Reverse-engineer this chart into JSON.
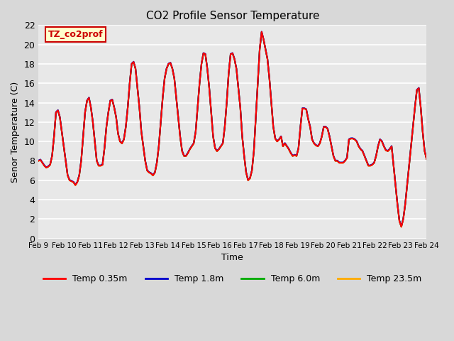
{
  "title": "CO2 Profile Sensor Temperature",
  "xlabel": "Time",
  "ylabel": "Senor Temperature (C)",
  "annotation_text": "TZ_co2prof",
  "annotation_box_color": "#ffffcc",
  "annotation_text_color": "#cc0000",
  "annotation_border_color": "#cc0000",
  "ylim": [
    0,
    22
  ],
  "yticks": [
    0,
    2,
    4,
    6,
    8,
    10,
    12,
    14,
    16,
    18,
    20,
    22
  ],
  "xtick_labels": [
    "Feb 9",
    "Feb 10",
    "Feb 11",
    "Feb 12",
    "Feb 13",
    "Feb 14",
    "Feb 15",
    "Feb 16",
    "Feb 17",
    "Feb 18",
    "Feb 19",
    "Feb 20",
    "Feb 21",
    "Feb 22",
    "Feb 23",
    "Feb 24"
  ],
  "background_color": "#d8d8d8",
  "plot_bg_color": "#e8e8e8",
  "grid_color": "#ffffff",
  "line_colors": {
    "0.35m": "#ff0000",
    "1.8m": "#0000cc",
    "6.0m": "#00aa00",
    "23.5m": "#ffaa00"
  },
  "legend_labels": [
    "Temp 0.35m",
    "Temp 1.8m",
    "Temp 6.0m",
    "Temp 23.5m"
  ],
  "temp_values": [
    8.0,
    8.1,
    7.8,
    7.5,
    7.3,
    7.4,
    7.6,
    8.5,
    10.5,
    13.0,
    13.2,
    12.5,
    11.0,
    9.5,
    8.0,
    6.5,
    6.0,
    5.9,
    5.8,
    5.5,
    5.8,
    6.5,
    8.0,
    10.5,
    13.0,
    14.2,
    14.5,
    13.5,
    12.0,
    10.0,
    8.0,
    7.5,
    7.5,
    7.6,
    9.3,
    11.5,
    13.0,
    14.2,
    14.3,
    13.5,
    12.5,
    10.8,
    10.0,
    9.8,
    10.2,
    11.5,
    13.5,
    16.0,
    18.0,
    18.2,
    17.5,
    15.5,
    13.5,
    11.0,
    9.5,
    8.0,
    7.0,
    6.8,
    6.7,
    6.5,
    6.8,
    7.8,
    9.5,
    12.0,
    14.5,
    16.5,
    17.5,
    18.0,
    18.1,
    17.5,
    16.5,
    14.5,
    12.5,
    10.5,
    9.0,
    8.5,
    8.5,
    8.8,
    9.2,
    9.5,
    9.8,
    11.0,
    13.5,
    16.0,
    18.0,
    19.1,
    19.0,
    17.5,
    15.5,
    13.0,
    10.5,
    9.3,
    9.0,
    9.2,
    9.5,
    9.8,
    11.5,
    14.0,
    17.0,
    19.0,
    19.1,
    18.5,
    17.5,
    15.5,
    13.5,
    10.5,
    8.5,
    6.8,
    6.0,
    6.2,
    7.0,
    9.0,
    12.5,
    16.0,
    19.5,
    21.3,
    20.5,
    19.5,
    18.5,
    16.5,
    14.0,
    11.5,
    10.3,
    10.0,
    10.2,
    10.5,
    9.5,
    9.8,
    9.5,
    9.2,
    8.8,
    8.5,
    8.6,
    8.5,
    9.3,
    11.5,
    13.4,
    13.4,
    13.3,
    12.3,
    11.5,
    10.2,
    9.8,
    9.6,
    9.5,
    9.8,
    10.5,
    11.5,
    11.5,
    11.3,
    10.5,
    9.5,
    8.5,
    8.0,
    8.0,
    7.8,
    7.8,
    7.8,
    8.0,
    8.3,
    10.2,
    10.3,
    10.3,
    10.2,
    10.0,
    9.5,
    9.2,
    9.0,
    8.5,
    8.0,
    7.5,
    7.5,
    7.6,
    7.8,
    8.5,
    9.5,
    10.2,
    10.0,
    9.5,
    9.1,
    9.0,
    9.2,
    9.5,
    7.5,
    5.5,
    3.5,
    1.8,
    1.2,
    2.0,
    3.5,
    5.5,
    7.5,
    9.5,
    11.5,
    13.5,
    15.3,
    15.5,
    13.5,
    11.0,
    9.0,
    8.2
  ]
}
